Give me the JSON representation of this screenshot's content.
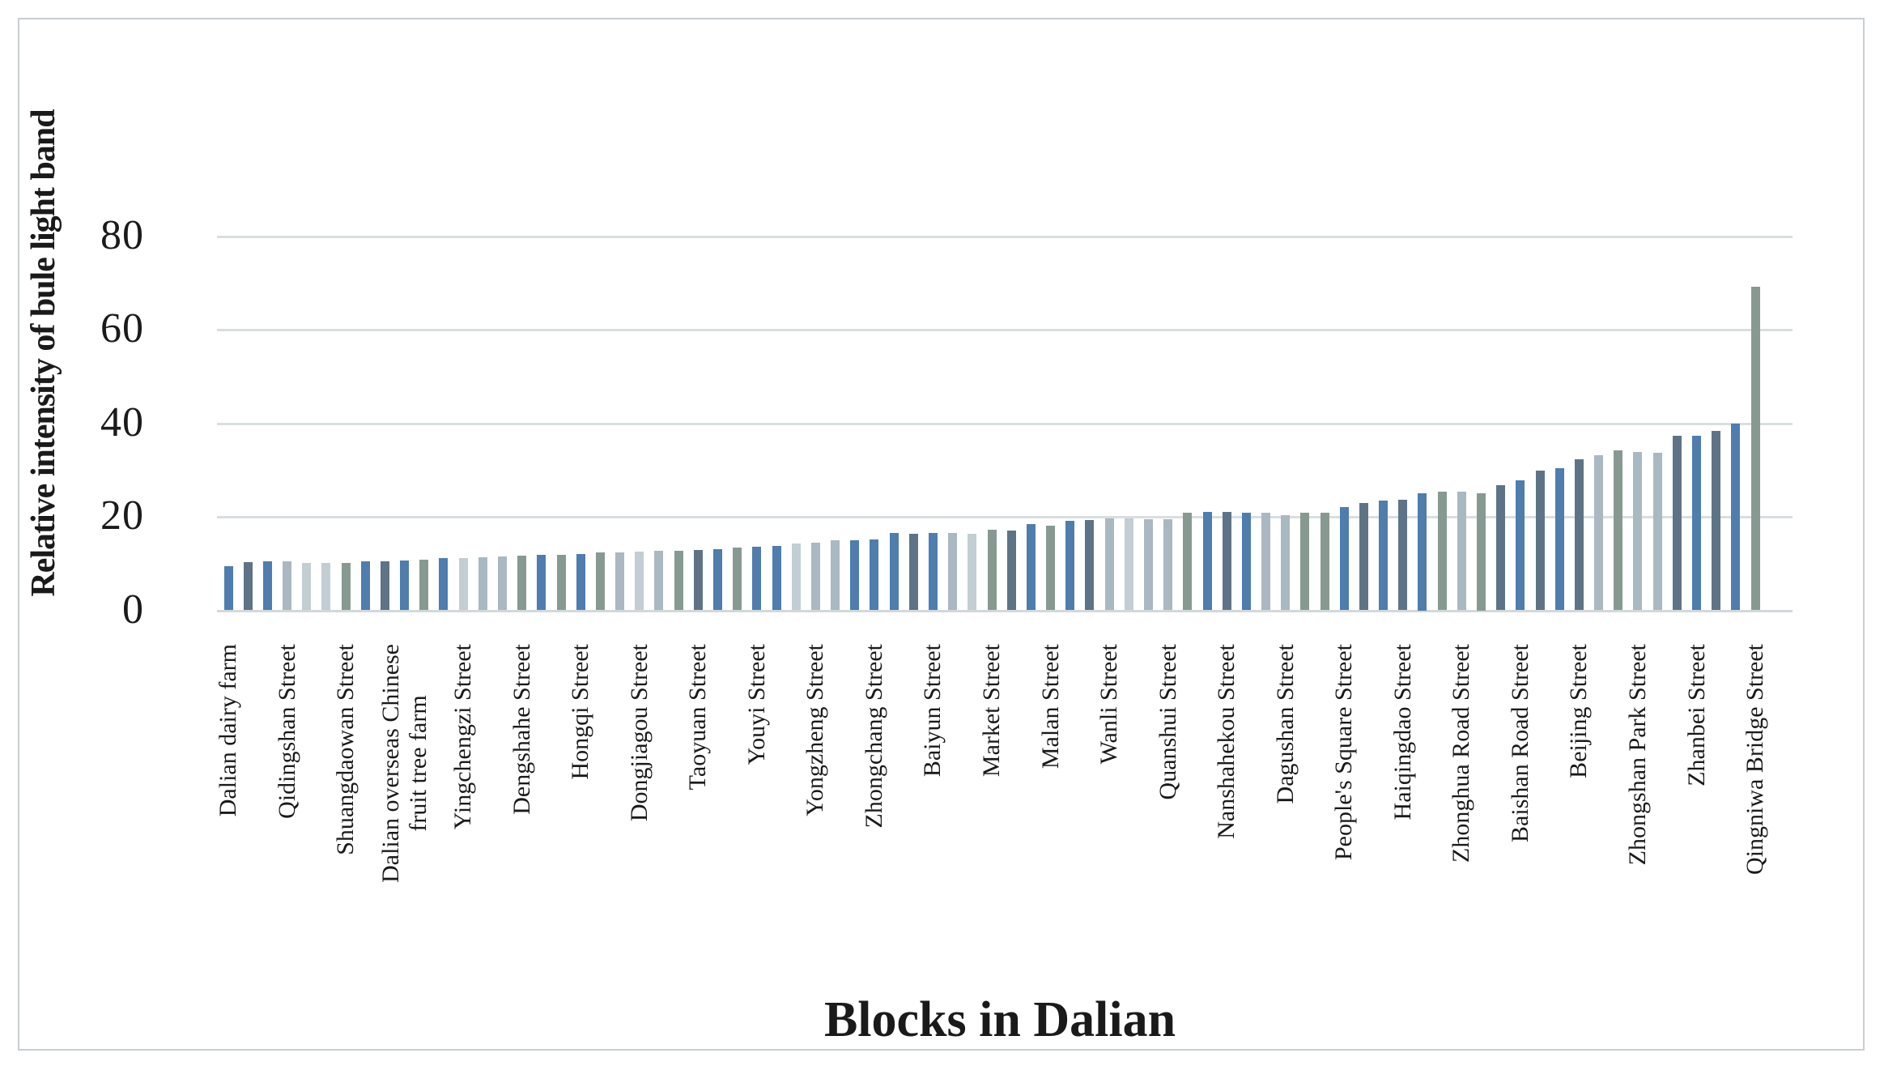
{
  "figure": {
    "y_axis_title": "Relative intensity of bule light band",
    "x_axis_title": "Blocks in Dalian"
  },
  "chart_data": {
    "type": "bar",
    "title": "",
    "xlabel": "Blocks in Dalian",
    "ylabel": "Relative intensity of bule light band",
    "ylim": [
      0,
      88
    ],
    "yticks": [
      0,
      20,
      40,
      60,
      80
    ],
    "grid": "horizontal-light-gray",
    "legend": "none",
    "n_bars": 79,
    "label_step": 3,
    "tick_labels": [
      "Dalian dairy farm",
      "Qidingshan Street",
      "Shuangdaowan Street",
      "Dalian overseas Chinese\nfruit tree farm",
      "Yingchengzi Street",
      "Dengshahe Street",
      "Hongqi Street",
      "Dongjiagou Street",
      "Taoyuan Street",
      "Youyi Street",
      "Yongzheng Street",
      "Zhongchang Street",
      "Baiyun Street",
      "Market Street",
      "Malan Street",
      "Wanli Street",
      "Quanshui Street",
      "Nanshahekou Street",
      "Dagushan Street",
      "People's Square Street",
      "Haiqingdao Street",
      "Zhonghua Road Street",
      "Baishan Road Street",
      "Beijing Street",
      "Zhongshan Park Street",
      "Zhanbei Street",
      "Qingniwa Bridge Street"
    ],
    "values": [
      9.3,
      10.2,
      10.3,
      10.3,
      10.1,
      10.0,
      10.1,
      10.4,
      10.4,
      10.6,
      10.8,
      11.0,
      11.1,
      11.3,
      11.5,
      11.6,
      11.7,
      11.8,
      12.0,
      12.2,
      12.3,
      12.4,
      12.6,
      12.7,
      12.8,
      13.0,
      13.4,
      13.5,
      13.7,
      14.2,
      14.3,
      14.8,
      14.9,
      15.1,
      16.5,
      16.3,
      16.5,
      16.5,
      16.2,
      17.2,
      16.9,
      18.3,
      18.0,
      19.0,
      19.2,
      19.5,
      19.5,
      19.4,
      19.4,
      20.7,
      21.0,
      21.0,
      20.8,
      20.7,
      20.3,
      20.7,
      20.8,
      21.9,
      22.8,
      23.4,
      23.6,
      25.0,
      25.2,
      25.3,
      25.0,
      26.6,
      27.6,
      29.7,
      30.3,
      32.2,
      33.1,
      34.1,
      33.8,
      33.6,
      37.2,
      37.2,
      38.3,
      39.8,
      69.0
    ],
    "bar_tones": [
      "B",
      "D",
      "B",
      "P",
      "L",
      "L",
      "G",
      "B",
      "D",
      "B",
      "G",
      "B",
      "L",
      "P",
      "P",
      "G",
      "B",
      "G",
      "B",
      "G",
      "P",
      "L",
      "P",
      "G",
      "D",
      "B",
      "G",
      "B",
      "B",
      "L",
      "P",
      "P",
      "B",
      "B",
      "B",
      "D",
      "B",
      "P",
      "L",
      "G",
      "D",
      "B",
      "G",
      "B",
      "D",
      "P",
      "L",
      "P",
      "P",
      "G",
      "B",
      "D",
      "B",
      "P",
      "P",
      "G",
      "G",
      "B",
      "D",
      "B",
      "D",
      "B",
      "G",
      "P",
      "G",
      "D",
      "B",
      "D",
      "B",
      "D",
      "P",
      "G",
      "P",
      "P",
      "D",
      "B",
      "D",
      "B",
      "G"
    ],
    "tone_colors": {
      "B": "#4e7dae",
      "D": "#5e7486",
      "G": "#879a92",
      "P": "#aab8c1",
      "L": "#c2ced4"
    },
    "gridline_color": "#dadee0",
    "text_color": "#1a1a1a"
  }
}
